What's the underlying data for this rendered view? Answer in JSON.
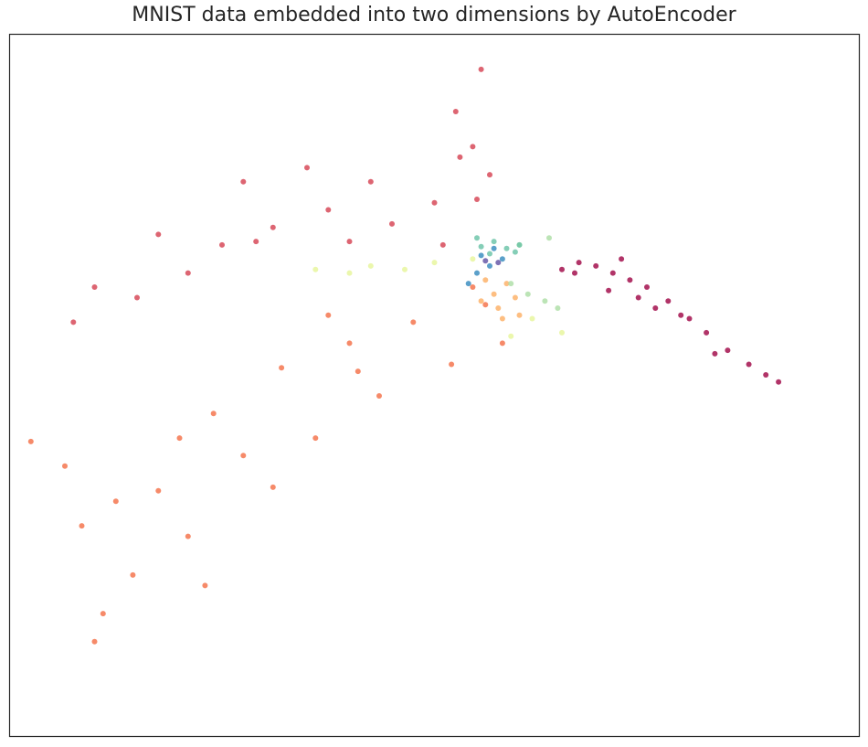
{
  "chart_data": {
    "type": "scatter",
    "title": "MNIST data embedded into two dimensions by AutoEncoder",
    "xlabel": "",
    "ylabel": "",
    "xlim": [
      -10,
      10
    ],
    "ylim": [
      -10,
      10
    ],
    "grid": false,
    "legend": "none",
    "colormap": "Spectral",
    "series": [
      {
        "color": "#9e0142",
        "points": [
          [
            3.8,
            3.4
          ],
          [
            3.4,
            3.5
          ],
          [
            4.2,
            3.2
          ],
          [
            4.6,
            3.0
          ],
          [
            5.0,
            2.8
          ],
          [
            3.3,
            3.2
          ],
          [
            5.5,
            2.4
          ],
          [
            6.0,
            1.9
          ],
          [
            6.4,
            1.5
          ],
          [
            6.9,
            1.0
          ],
          [
            7.4,
            0.6
          ],
          [
            5.2,
            2.2
          ],
          [
            4.1,
            2.7
          ],
          [
            4.8,
            2.5
          ],
          [
            6.6,
            0.9
          ],
          [
            7.8,
            0.3
          ],
          [
            8.1,
            0.1
          ],
          [
            5.8,
            2.0
          ],
          [
            4.4,
            3.6
          ],
          [
            3.0,
            3.3
          ]
        ]
      },
      {
        "color": "#d53e4f",
        "points": [
          [
            -4.5,
            5.8
          ],
          [
            -3.0,
            6.2
          ],
          [
            -1.5,
            5.8
          ],
          [
            0.0,
            5.2
          ],
          [
            0.9,
            6.8
          ],
          [
            1.0,
            5.3
          ],
          [
            1.1,
            9.0
          ],
          [
            0.5,
            7.8
          ],
          [
            -2.5,
            5.0
          ],
          [
            -5.0,
            4.0
          ],
          [
            -6.5,
            4.3
          ],
          [
            -8.0,
            2.8
          ],
          [
            -8.5,
            1.8
          ],
          [
            -7.0,
            2.5
          ],
          [
            -3.8,
            4.5
          ],
          [
            -2.0,
            4.1
          ],
          [
            0.6,
            6.5
          ],
          [
            1.3,
            6.0
          ],
          [
            -5.8,
            3.2
          ],
          [
            -1.0,
            4.6
          ],
          [
            0.2,
            4.0
          ],
          [
            -4.2,
            4.1
          ]
        ]
      },
      {
        "color": "#f46d43",
        "points": [
          [
            -8.7,
            -2.3
          ],
          [
            -8.3,
            -4.0
          ],
          [
            -7.8,
            -6.5
          ],
          [
            -7.1,
            -5.4
          ],
          [
            -6.5,
            -3.0
          ],
          [
            -5.8,
            -4.3
          ],
          [
            -5.2,
            -0.8
          ],
          [
            -4.5,
            -2.0
          ],
          [
            -3.6,
            0.5
          ],
          [
            -2.8,
            -1.5
          ],
          [
            -2.0,
            1.2
          ],
          [
            -1.3,
            -0.3
          ],
          [
            -0.5,
            1.8
          ],
          [
            0.4,
            0.6
          ],
          [
            1.2,
            2.3
          ],
          [
            1.6,
            1.2
          ],
          [
            -6.0,
            -1.5
          ],
          [
            -5.4,
            -5.7
          ],
          [
            -7.5,
            -3.3
          ],
          [
            -3.8,
            -2.9
          ],
          [
            -1.8,
            0.4
          ],
          [
            0.9,
            2.8
          ],
          [
            -2.5,
            2.0
          ],
          [
            -9.5,
            -1.6
          ],
          [
            -8.0,
            -7.3
          ]
        ]
      },
      {
        "color": "#fdae61",
        "points": [
          [
            1.2,
            3.0
          ],
          [
            1.4,
            2.6
          ],
          [
            1.7,
            2.9
          ],
          [
            1.5,
            2.2
          ],
          [
            1.9,
            2.5
          ],
          [
            1.1,
            2.4
          ],
          [
            1.6,
            1.9
          ],
          [
            2.0,
            2.0
          ]
        ]
      },
      {
        "color": "#e6f598",
        "points": [
          [
            -2.8,
            3.3
          ],
          [
            -1.5,
            3.4
          ],
          [
            0.0,
            3.5
          ],
          [
            0.9,
            3.6
          ],
          [
            -2.0,
            3.2
          ],
          [
            -0.7,
            3.3
          ],
          [
            3.0,
            1.5
          ],
          [
            2.3,
            1.9
          ],
          [
            1.8,
            1.4
          ]
        ]
      },
      {
        "color": "#abdda4",
        "points": [
          [
            1.8,
            2.9
          ],
          [
            2.2,
            2.6
          ],
          [
            2.6,
            2.4
          ],
          [
            2.9,
            2.2
          ],
          [
            2.0,
            4.0
          ],
          [
            2.7,
            4.2
          ]
        ]
      },
      {
        "color": "#66c2a5",
        "points": [
          [
            1.1,
            3.95
          ],
          [
            1.4,
            4.1
          ],
          [
            1.7,
            3.9
          ],
          [
            2.0,
            4.0
          ],
          [
            1.3,
            3.75
          ],
          [
            1.9,
            3.8
          ],
          [
            1.0,
            4.2
          ]
        ]
      },
      {
        "color": "#3288bd",
        "points": [
          [
            1.1,
            3.7
          ],
          [
            1.3,
            3.4
          ],
          [
            1.6,
            3.6
          ],
          [
            1.0,
            3.2
          ],
          [
            0.8,
            2.9
          ],
          [
            1.4,
            3.9
          ]
        ]
      },
      {
        "color": "#5e4fa2",
        "points": [
          [
            1.2,
            3.55
          ],
          [
            1.5,
            3.5
          ]
        ]
      }
    ]
  }
}
